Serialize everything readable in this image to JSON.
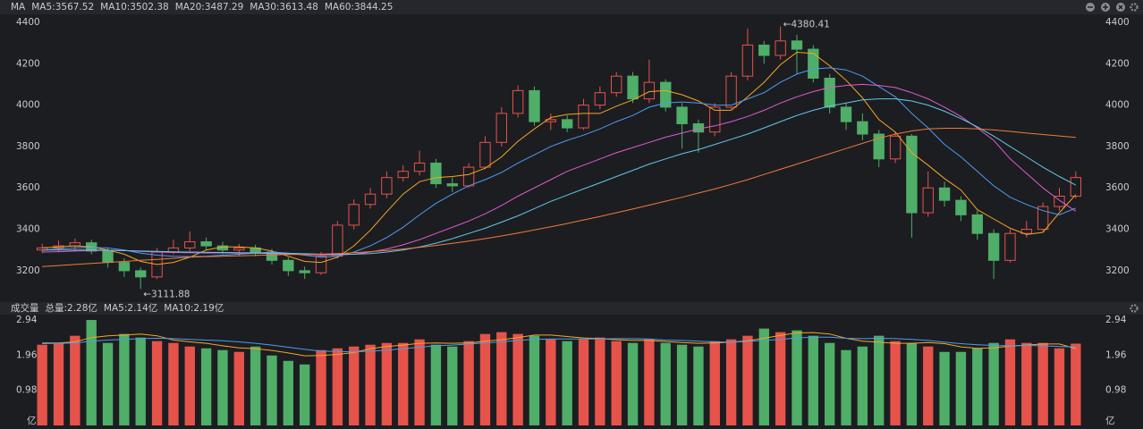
{
  "chart_data": [
    {
      "type": "candlestick",
      "legend_title": "MA",
      "up_color": "#e5534b",
      "down_color": "#4fae68",
      "open": [
        3300,
        3310,
        3320,
        3335,
        3295,
        3240,
        3200,
        3170,
        3290,
        3310,
        3340,
        3320,
        3300,
        3310,
        3290,
        3250,
        3200,
        3190,
        3270,
        3420,
        3520,
        3570,
        3650,
        3680,
        3720,
        3620,
        3610,
        3700,
        3820,
        3960,
        4070,
        3920,
        3930,
        3890,
        4000,
        4060,
        4140,
        4030,
        4110,
        3990,
        3910,
        3870,
        3990,
        4140,
        4290,
        4240,
        4310,
        4270,
        4130,
        3990,
        3920,
        3860,
        3740,
        3850,
        3480,
        3600,
        3540,
        3470,
        3380,
        3250,
        3380,
        3400,
        3510,
        3560
      ],
      "high": [
        3330,
        3345,
        3355,
        3350,
        3310,
        3260,
        3215,
        3310,
        3350,
        3390,
        3360,
        3340,
        3330,
        3325,
        3305,
        3265,
        3220,
        3290,
        3440,
        3545,
        3600,
        3680,
        3710,
        3780,
        3740,
        3650,
        3720,
        3850,
        3990,
        4095,
        4090,
        3960,
        3950,
        4030,
        4090,
        4160,
        4160,
        4220,
        4125,
        4010,
        3930,
        4010,
        4160,
        4370,
        4310,
        4380.41,
        4340,
        4290,
        4150,
        4010,
        3960,
        3880,
        3870,
        3860,
        3680,
        3630,
        3560,
        3490,
        3400,
        3400,
        3440,
        3530,
        3600,
        3680
      ],
      "low": [
        3285,
        3290,
        3300,
        3280,
        3215,
        3170,
        3111.88,
        3160,
        3280,
        3295,
        3300,
        3280,
        3270,
        3270,
        3230,
        3175,
        3160,
        3180,
        3260,
        3400,
        3500,
        3550,
        3630,
        3660,
        3600,
        3580,
        3600,
        3690,
        3800,
        3940,
        3900,
        3880,
        3870,
        3880,
        3980,
        4040,
        4010,
        4010,
        3970,
        3790,
        3770,
        3850,
        3980,
        4120,
        4200,
        4220,
        4150,
        4110,
        3960,
        3880,
        3830,
        3700,
        3720,
        3360,
        3460,
        3510,
        3440,
        3350,
        3160,
        3240,
        3360,
        3390,
        3490,
        3550
      ],
      "close": [
        3310,
        3320,
        3335,
        3295,
        3240,
        3200,
        3170,
        3290,
        3310,
        3340,
        3320,
        3300,
        3310,
        3290,
        3250,
        3200,
        3190,
        3270,
        3420,
        3520,
        3570,
        3650,
        3680,
        3720,
        3620,
        3610,
        3700,
        3820,
        3960,
        4070,
        3920,
        3930,
        3890,
        4000,
        4060,
        4140,
        4030,
        4110,
        3990,
        3910,
        3870,
        3990,
        4140,
        4290,
        4240,
        4310,
        4270,
        4130,
        3990,
        3920,
        3860,
        3740,
        3850,
        3480,
        3600,
        3540,
        3470,
        3380,
        3250,
        3380,
        3400,
        3510,
        3560,
        3650
      ],
      "series": [
        {
          "name": "MA5:3567.52",
          "color": "#f5a623",
          "values": [
            3310,
            3315,
            3320,
            3315,
            3300,
            3280,
            3245,
            3230,
            3240,
            3265,
            3300,
            3315,
            3315,
            3310,
            3295,
            3270,
            3245,
            3240,
            3265,
            3320,
            3395,
            3485,
            3570,
            3630,
            3650,
            3655,
            3665,
            3695,
            3750,
            3825,
            3885,
            3940,
            3955,
            3960,
            3960,
            3995,
            4025,
            4065,
            4070,
            4050,
            4020,
            3975,
            3975,
            4040,
            4110,
            4195,
            4255,
            4250,
            4190,
            4120,
            4035,
            3930,
            3870,
            3770,
            3710,
            3645,
            3590,
            3495,
            3450,
            3405,
            3375,
            3385,
            3480,
            3567.52
          ]
        },
        {
          "name": "MA10:3502.38",
          "color": "#4d9cf0",
          "values": [
            3300,
            3305,
            3310,
            3312,
            3310,
            3300,
            3285,
            3275,
            3270,
            3268,
            3270,
            3275,
            3280,
            3285,
            3290,
            3285,
            3275,
            3265,
            3270,
            3290,
            3320,
            3360,
            3410,
            3470,
            3525,
            3570,
            3610,
            3640,
            3675,
            3720,
            3760,
            3800,
            3830,
            3855,
            3885,
            3920,
            3950,
            3990,
            4010,
            4015,
            4010,
            4000,
            4000,
            4030,
            4060,
            4110,
            4150,
            4175,
            4180,
            4170,
            4140,
            4090,
            4040,
            3960,
            3890,
            3810,
            3750,
            3680,
            3610,
            3555,
            3520,
            3490,
            3470,
            3502.38
          ]
        },
        {
          "name": "MA20:3487.29",
          "color": "#e05bd0",
          "values": [
            3290,
            3292,
            3295,
            3297,
            3298,
            3297,
            3293,
            3290,
            3288,
            3287,
            3286,
            3286,
            3285,
            3284,
            3283,
            3281,
            3278,
            3276,
            3276,
            3280,
            3290,
            3305,
            3325,
            3350,
            3380,
            3410,
            3440,
            3475,
            3515,
            3560,
            3600,
            3640,
            3680,
            3710,
            3740,
            3770,
            3795,
            3820,
            3845,
            3865,
            3885,
            3900,
            3920,
            3945,
            3975,
            4010,
            4040,
            4065,
            4085,
            4095,
            4100,
            4095,
            4085,
            4060,
            4030,
            3990,
            3945,
            3890,
            3830,
            3740,
            3670,
            3600,
            3540,
            3487.29
          ]
        },
        {
          "name": "MA30:3613.48",
          "color": "#5fc9e8",
          "values": [
            3300,
            3300,
            3300,
            3300,
            3299,
            3297,
            3295,
            3293,
            3291,
            3290,
            3289,
            3288,
            3287,
            3286,
            3285,
            3284,
            3282,
            3280,
            3279,
            3280,
            3283,
            3290,
            3300,
            3315,
            3333,
            3355,
            3380,
            3405,
            3435,
            3465,
            3500,
            3535,
            3565,
            3595,
            3625,
            3655,
            3685,
            3715,
            3740,
            3765,
            3785,
            3810,
            3835,
            3860,
            3890,
            3920,
            3950,
            3975,
            3995,
            4010,
            4025,
            4030,
            4030,
            4020,
            4000,
            3970,
            3935,
            3895,
            3850,
            3800,
            3750,
            3700,
            3655,
            3613.48
          ]
        },
        {
          "name": "MA60:3844.25",
          "color": "#f07a3a",
          "values": [
            3220,
            3225,
            3230,
            3235,
            3240,
            3245,
            3250,
            3255,
            3260,
            3265,
            3268,
            3270,
            3272,
            3274,
            3276,
            3278,
            3279,
            3280,
            3283,
            3287,
            3292,
            3298,
            3305,
            3313,
            3322,
            3332,
            3343,
            3355,
            3368,
            3382,
            3397,
            3412,
            3428,
            3445,
            3462,
            3480,
            3498,
            3517,
            3536,
            3555,
            3575,
            3595,
            3617,
            3640,
            3665,
            3690,
            3715,
            3740,
            3765,
            3790,
            3815,
            3840,
            3860,
            3875,
            3885,
            3888,
            3888,
            3885,
            3880,
            3873,
            3865,
            3858,
            3851,
            3844.25
          ]
        }
      ],
      "ylim": [
        3070,
        4430
      ],
      "yticks": [
        3200,
        3400,
        3600,
        3800,
        4000,
        4200,
        4400
      ],
      "low_label": "←3111.88",
      "high_label": "←4380.41"
    },
    {
      "type": "bar",
      "title": "成交量",
      "total_label": "总量:2.28亿",
      "total_color": "#4fae68",
      "values": [
        2.25,
        2.3,
        2.5,
        2.94,
        2.3,
        2.55,
        2.45,
        2.35,
        2.3,
        2.2,
        2.15,
        2.1,
        2.05,
        2.2,
        1.95,
        1.8,
        1.7,
        2.1,
        2.15,
        2.2,
        2.25,
        2.3,
        2.3,
        2.4,
        2.25,
        2.2,
        2.35,
        2.55,
        2.6,
        2.55,
        2.5,
        2.4,
        2.35,
        2.4,
        2.45,
        2.35,
        2.3,
        2.4,
        2.3,
        2.25,
        2.2,
        2.35,
        2.4,
        2.5,
        2.7,
        2.6,
        2.65,
        2.5,
        2.3,
        2.1,
        2.2,
        2.5,
        2.35,
        2.3,
        2.2,
        2.05,
        2.05,
        2.15,
        2.3,
        2.4,
        2.3,
        2.3,
        2.15,
        2.28
      ],
      "series": [
        {
          "name": "MA5:2.14亿",
          "color": "#f5a623",
          "values": [
            2.3,
            2.3,
            2.33,
            2.45,
            2.5,
            2.52,
            2.55,
            2.5,
            2.38,
            2.33,
            2.29,
            2.22,
            2.16,
            2.14,
            2.09,
            2.02,
            1.94,
            1.95,
            1.98,
            2.03,
            2.14,
            2.2,
            2.24,
            2.29,
            2.3,
            2.29,
            2.3,
            2.35,
            2.39,
            2.45,
            2.52,
            2.52,
            2.48,
            2.44,
            2.42,
            2.39,
            2.37,
            2.37,
            2.34,
            2.31,
            2.29,
            2.3,
            2.32,
            2.36,
            2.43,
            2.51,
            2.58,
            2.59,
            2.55,
            2.43,
            2.35,
            2.32,
            2.29,
            2.29,
            2.31,
            2.28,
            2.19,
            2.15,
            2.16,
            2.21,
            2.24,
            2.27,
            2.27,
            2.14
          ]
        },
        {
          "name": "MA10:2.19亿",
          "color": "#4d9cf0",
          "values": [
            2.28,
            2.29,
            2.3,
            2.35,
            2.38,
            2.4,
            2.42,
            2.43,
            2.42,
            2.4,
            2.38,
            2.36,
            2.33,
            2.29,
            2.24,
            2.18,
            2.12,
            2.07,
            2.06,
            2.05,
            2.07,
            2.1,
            2.14,
            2.18,
            2.22,
            2.24,
            2.27,
            2.3,
            2.33,
            2.37,
            2.4,
            2.41,
            2.41,
            2.41,
            2.41,
            2.42,
            2.42,
            2.41,
            2.38,
            2.37,
            2.35,
            2.33,
            2.32,
            2.34,
            2.37,
            2.4,
            2.44,
            2.46,
            2.46,
            2.43,
            2.42,
            2.43,
            2.42,
            2.4,
            2.37,
            2.32,
            2.28,
            2.25,
            2.23,
            2.22,
            2.23,
            2.22,
            2.2,
            2.19
          ]
        }
      ],
      "ylim": [
        0,
        3.09
      ],
      "yticks": [
        0.98,
        1.96,
        2.94
      ],
      "unit": "亿"
    }
  ]
}
